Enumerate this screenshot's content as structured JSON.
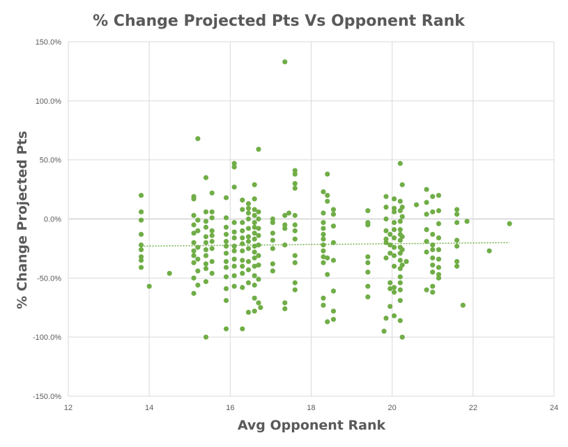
{
  "chart_data": {
    "type": "scatter",
    "title": "% Change Projected Pts Vs Opponent Rank",
    "xlabel": "Avg Opponent Rank",
    "ylabel": "% Change Projected Pts",
    "xlim": [
      12,
      24
    ],
    "ylim": [
      -150,
      150
    ],
    "x_ticks": [
      12,
      14,
      16,
      18,
      20,
      22,
      24
    ],
    "y_ticks": [
      -150,
      -100,
      -50,
      0,
      50,
      100,
      150
    ],
    "y_tick_labels": [
      "-150.0%",
      "-100.0%",
      "-50.0%",
      "0.0%",
      "50.0%",
      "100.0%",
      "150.0%"
    ],
    "x_tick_labels": [
      "12",
      "14",
      "16",
      "18",
      "20",
      "22",
      "24"
    ],
    "grid": true,
    "legend": "none",
    "colors": {
      "point": "#70ad47",
      "trend": "#70ad47",
      "grid": "#d9d9d9",
      "text": "#595959"
    },
    "trendline": {
      "type": "linear",
      "style": "dotted",
      "start": [
        13.8,
        -23
      ],
      "end": [
        22.9,
        -20
      ]
    },
    "points": [
      [
        13.8,
        20
      ],
      [
        13.8,
        6
      ],
      [
        13.8,
        -1
      ],
      [
        13.8,
        -13
      ],
      [
        13.8,
        -22
      ],
      [
        13.8,
        -26
      ],
      [
        13.8,
        -32
      ],
      [
        13.8,
        -35
      ],
      [
        13.8,
        -41
      ],
      [
        14.0,
        -57
      ],
      [
        14.5,
        -46
      ],
      [
        15.1,
        19
      ],
      [
        15.1,
        17
      ],
      [
        15.1,
        3
      ],
      [
        15.1,
        -5
      ],
      [
        15.1,
        -12
      ],
      [
        15.1,
        -20
      ],
      [
        15.1,
        -27
      ],
      [
        15.1,
        -31
      ],
      [
        15.1,
        -37
      ],
      [
        15.1,
        -50
      ],
      [
        15.1,
        -63
      ],
      [
        15.2,
        68
      ],
      [
        15.2,
        -1
      ],
      [
        15.2,
        -10
      ],
      [
        15.2,
        -24
      ],
      [
        15.2,
        -34
      ],
      [
        15.2,
        -44
      ],
      [
        15.2,
        -56
      ],
      [
        15.4,
        35
      ],
      [
        15.4,
        6
      ],
      [
        15.4,
        -2
      ],
      [
        15.4,
        -7
      ],
      [
        15.4,
        -15
      ],
      [
        15.4,
        -20
      ],
      [
        15.4,
        -26
      ],
      [
        15.4,
        -31
      ],
      [
        15.4,
        -38
      ],
      [
        15.4,
        -42
      ],
      [
        15.4,
        -53
      ],
      [
        15.4,
        -100
      ],
      [
        15.55,
        22
      ],
      [
        15.55,
        6
      ],
      [
        15.55,
        1
      ],
      [
        15.55,
        -10
      ],
      [
        15.55,
        -14
      ],
      [
        15.55,
        -19
      ],
      [
        15.55,
        -25
      ],
      [
        15.55,
        -36
      ],
      [
        15.55,
        -46
      ],
      [
        15.9,
        18
      ],
      [
        15.9,
        1
      ],
      [
        15.9,
        -7
      ],
      [
        15.9,
        -13
      ],
      [
        15.9,
        -19
      ],
      [
        15.9,
        -23
      ],
      [
        15.9,
        -29
      ],
      [
        15.9,
        -36
      ],
      [
        15.9,
        -41
      ],
      [
        15.9,
        -49
      ],
      [
        15.9,
        -59
      ],
      [
        15.9,
        -69
      ],
      [
        15.9,
        -93
      ],
      [
        16.1,
        47
      ],
      [
        16.1,
        44
      ],
      [
        16.1,
        27
      ],
      [
        16.1,
        -3
      ],
      [
        16.1,
        -11
      ],
      [
        16.1,
        -16
      ],
      [
        16.1,
        -23
      ],
      [
        16.1,
        -27
      ],
      [
        16.1,
        -34
      ],
      [
        16.1,
        -40
      ],
      [
        16.1,
        -48
      ],
      [
        16.1,
        -57
      ],
      [
        16.3,
        16
      ],
      [
        16.3,
        8
      ],
      [
        16.3,
        -3
      ],
      [
        16.3,
        -10
      ],
      [
        16.3,
        -16
      ],
      [
        16.3,
        -21
      ],
      [
        16.3,
        -27
      ],
      [
        16.3,
        -35
      ],
      [
        16.3,
        -40
      ],
      [
        16.3,
        -46
      ],
      [
        16.3,
        -58
      ],
      [
        16.3,
        -93
      ],
      [
        16.45,
        13
      ],
      [
        16.45,
        9
      ],
      [
        16.45,
        5
      ],
      [
        16.45,
        0
      ],
      [
        16.45,
        -8
      ],
      [
        16.45,
        -15
      ],
      [
        16.45,
        -19
      ],
      [
        16.45,
        -25
      ],
      [
        16.45,
        -36
      ],
      [
        16.45,
        -43
      ],
      [
        16.45,
        -54
      ],
      [
        16.45,
        -79
      ],
      [
        16.6,
        29
      ],
      [
        16.6,
        17
      ],
      [
        16.6,
        8
      ],
      [
        16.6,
        3
      ],
      [
        16.6,
        -3
      ],
      [
        16.6,
        -7
      ],
      [
        16.6,
        -12
      ],
      [
        16.6,
        -17
      ],
      [
        16.6,
        -23
      ],
      [
        16.6,
        -28
      ],
      [
        16.6,
        -33
      ],
      [
        16.6,
        -40
      ],
      [
        16.6,
        -48
      ],
      [
        16.6,
        -56
      ],
      [
        16.6,
        -67
      ],
      [
        16.6,
        -78
      ],
      [
        16.7,
        59
      ],
      [
        16.7,
        6
      ],
      [
        16.7,
        0
      ],
      [
        16.7,
        -8
      ],
      [
        16.7,
        -14
      ],
      [
        16.7,
        -22
      ],
      [
        16.7,
        -31
      ],
      [
        16.7,
        -39
      ],
      [
        16.7,
        -51
      ],
      [
        16.7,
        -71
      ],
      [
        16.75,
        -75
      ],
      [
        17.05,
        0
      ],
      [
        17.05,
        -3
      ],
      [
        17.05,
        -12
      ],
      [
        17.05,
        -18
      ],
      [
        17.05,
        -25
      ],
      [
        17.05,
        -38
      ],
      [
        17.05,
        -44
      ],
      [
        17.35,
        133
      ],
      [
        17.35,
        3
      ],
      [
        17.35,
        -5
      ],
      [
        17.35,
        -8
      ],
      [
        17.35,
        -22
      ],
      [
        17.35,
        -71
      ],
      [
        17.35,
        -76
      ],
      [
        17.45,
        5
      ],
      [
        17.6,
        41
      ],
      [
        17.6,
        38
      ],
      [
        17.6,
        30
      ],
      [
        17.6,
        26
      ],
      [
        17.6,
        3
      ],
      [
        17.6,
        -5
      ],
      [
        17.6,
        -10
      ],
      [
        17.6,
        -17
      ],
      [
        17.6,
        -31
      ],
      [
        17.6,
        -37
      ],
      [
        17.6,
        -54
      ],
      [
        17.6,
        -60
      ],
      [
        18.3,
        23
      ],
      [
        18.3,
        5
      ],
      [
        18.3,
        -3
      ],
      [
        18.3,
        -8
      ],
      [
        18.3,
        -13
      ],
      [
        18.3,
        -17
      ],
      [
        18.3,
        -22
      ],
      [
        18.3,
        -27
      ],
      [
        18.3,
        -32
      ],
      [
        18.3,
        -37
      ],
      [
        18.3,
        -67
      ],
      [
        18.3,
        -73
      ],
      [
        18.4,
        38
      ],
      [
        18.4,
        20
      ],
      [
        18.4,
        15
      ],
      [
        18.4,
        -33
      ],
      [
        18.4,
        -47
      ],
      [
        18.4,
        -87
      ],
      [
        18.55,
        8
      ],
      [
        18.55,
        4
      ],
      [
        18.55,
        -6
      ],
      [
        18.55,
        -20
      ],
      [
        18.55,
        -35
      ],
      [
        18.55,
        -61
      ],
      [
        18.55,
        -78
      ],
      [
        18.55,
        -85
      ],
      [
        19.4,
        7
      ],
      [
        19.4,
        -3
      ],
      [
        19.4,
        -5
      ],
      [
        19.4,
        -32
      ],
      [
        19.4,
        -37
      ],
      [
        19.4,
        -45
      ],
      [
        19.4,
        -57
      ],
      [
        19.4,
        -66
      ],
      [
        19.8,
        -95
      ],
      [
        19.85,
        19
      ],
      [
        19.85,
        10
      ],
      [
        19.85,
        0
      ],
      [
        19.85,
        -10
      ],
      [
        19.85,
        -17
      ],
      [
        19.85,
        -20
      ],
      [
        19.85,
        -33
      ],
      [
        19.85,
        -84
      ],
      [
        19.95,
        -13
      ],
      [
        19.95,
        -22
      ],
      [
        19.95,
        -29
      ],
      [
        19.95,
        -54
      ],
      [
        19.95,
        -59
      ],
      [
        19.95,
        -74
      ],
      [
        20.05,
        17
      ],
      [
        20.05,
        9
      ],
      [
        20.05,
        6
      ],
      [
        20.05,
        -3
      ],
      [
        20.05,
        -9
      ],
      [
        20.05,
        -16
      ],
      [
        20.05,
        -24
      ],
      [
        20.05,
        -31
      ],
      [
        20.05,
        -40
      ],
      [
        20.05,
        -58
      ],
      [
        20.05,
        -62
      ],
      [
        20.05,
        -82
      ],
      [
        20.2,
        47
      ],
      [
        20.2,
        15
      ],
      [
        20.2,
        7
      ],
      [
        20.2,
        -2
      ],
      [
        20.2,
        -9
      ],
      [
        20.2,
        -13
      ],
      [
        20.2,
        -18
      ],
      [
        20.2,
        -24
      ],
      [
        20.2,
        -29
      ],
      [
        20.2,
        -35
      ],
      [
        20.2,
        -42
      ],
      [
        20.2,
        -49
      ],
      [
        20.2,
        -54
      ],
      [
        20.2,
        -60
      ],
      [
        20.2,
        -69
      ],
      [
        20.2,
        -86
      ],
      [
        20.25,
        29
      ],
      [
        20.25,
        10
      ],
      [
        20.25,
        2
      ],
      [
        20.25,
        -15
      ],
      [
        20.25,
        -26
      ],
      [
        20.25,
        -39
      ],
      [
        20.25,
        -100
      ],
      [
        20.35,
        -36
      ],
      [
        20.6,
        12
      ],
      [
        20.85,
        25
      ],
      [
        20.85,
        14
      ],
      [
        20.85,
        4
      ],
      [
        20.85,
        -9
      ],
      [
        20.85,
        -19
      ],
      [
        20.85,
        -28
      ],
      [
        20.85,
        -60
      ],
      [
        21.0,
        19
      ],
      [
        21.0,
        6
      ],
      [
        21.0,
        -13
      ],
      [
        21.0,
        -22
      ],
      [
        21.0,
        -26
      ],
      [
        21.0,
        -33
      ],
      [
        21.0,
        -39
      ],
      [
        21.0,
        -45
      ],
      [
        21.0,
        -57
      ],
      [
        21.0,
        -62
      ],
      [
        21.15,
        20
      ],
      [
        21.15,
        7
      ],
      [
        21.15,
        -4
      ],
      [
        21.15,
        -16
      ],
      [
        21.15,
        -26
      ],
      [
        21.15,
        -34
      ],
      [
        21.15,
        -41
      ],
      [
        21.15,
        -47
      ],
      [
        21.15,
        -50
      ],
      [
        21.6,
        8
      ],
      [
        21.6,
        4
      ],
      [
        21.6,
        -3
      ],
      [
        21.6,
        -18
      ],
      [
        21.6,
        -23
      ],
      [
        21.6,
        -36
      ],
      [
        21.6,
        -40
      ],
      [
        21.75,
        -73
      ],
      [
        21.85,
        -2
      ],
      [
        22.4,
        -27
      ],
      [
        22.9,
        -4
      ]
    ]
  }
}
